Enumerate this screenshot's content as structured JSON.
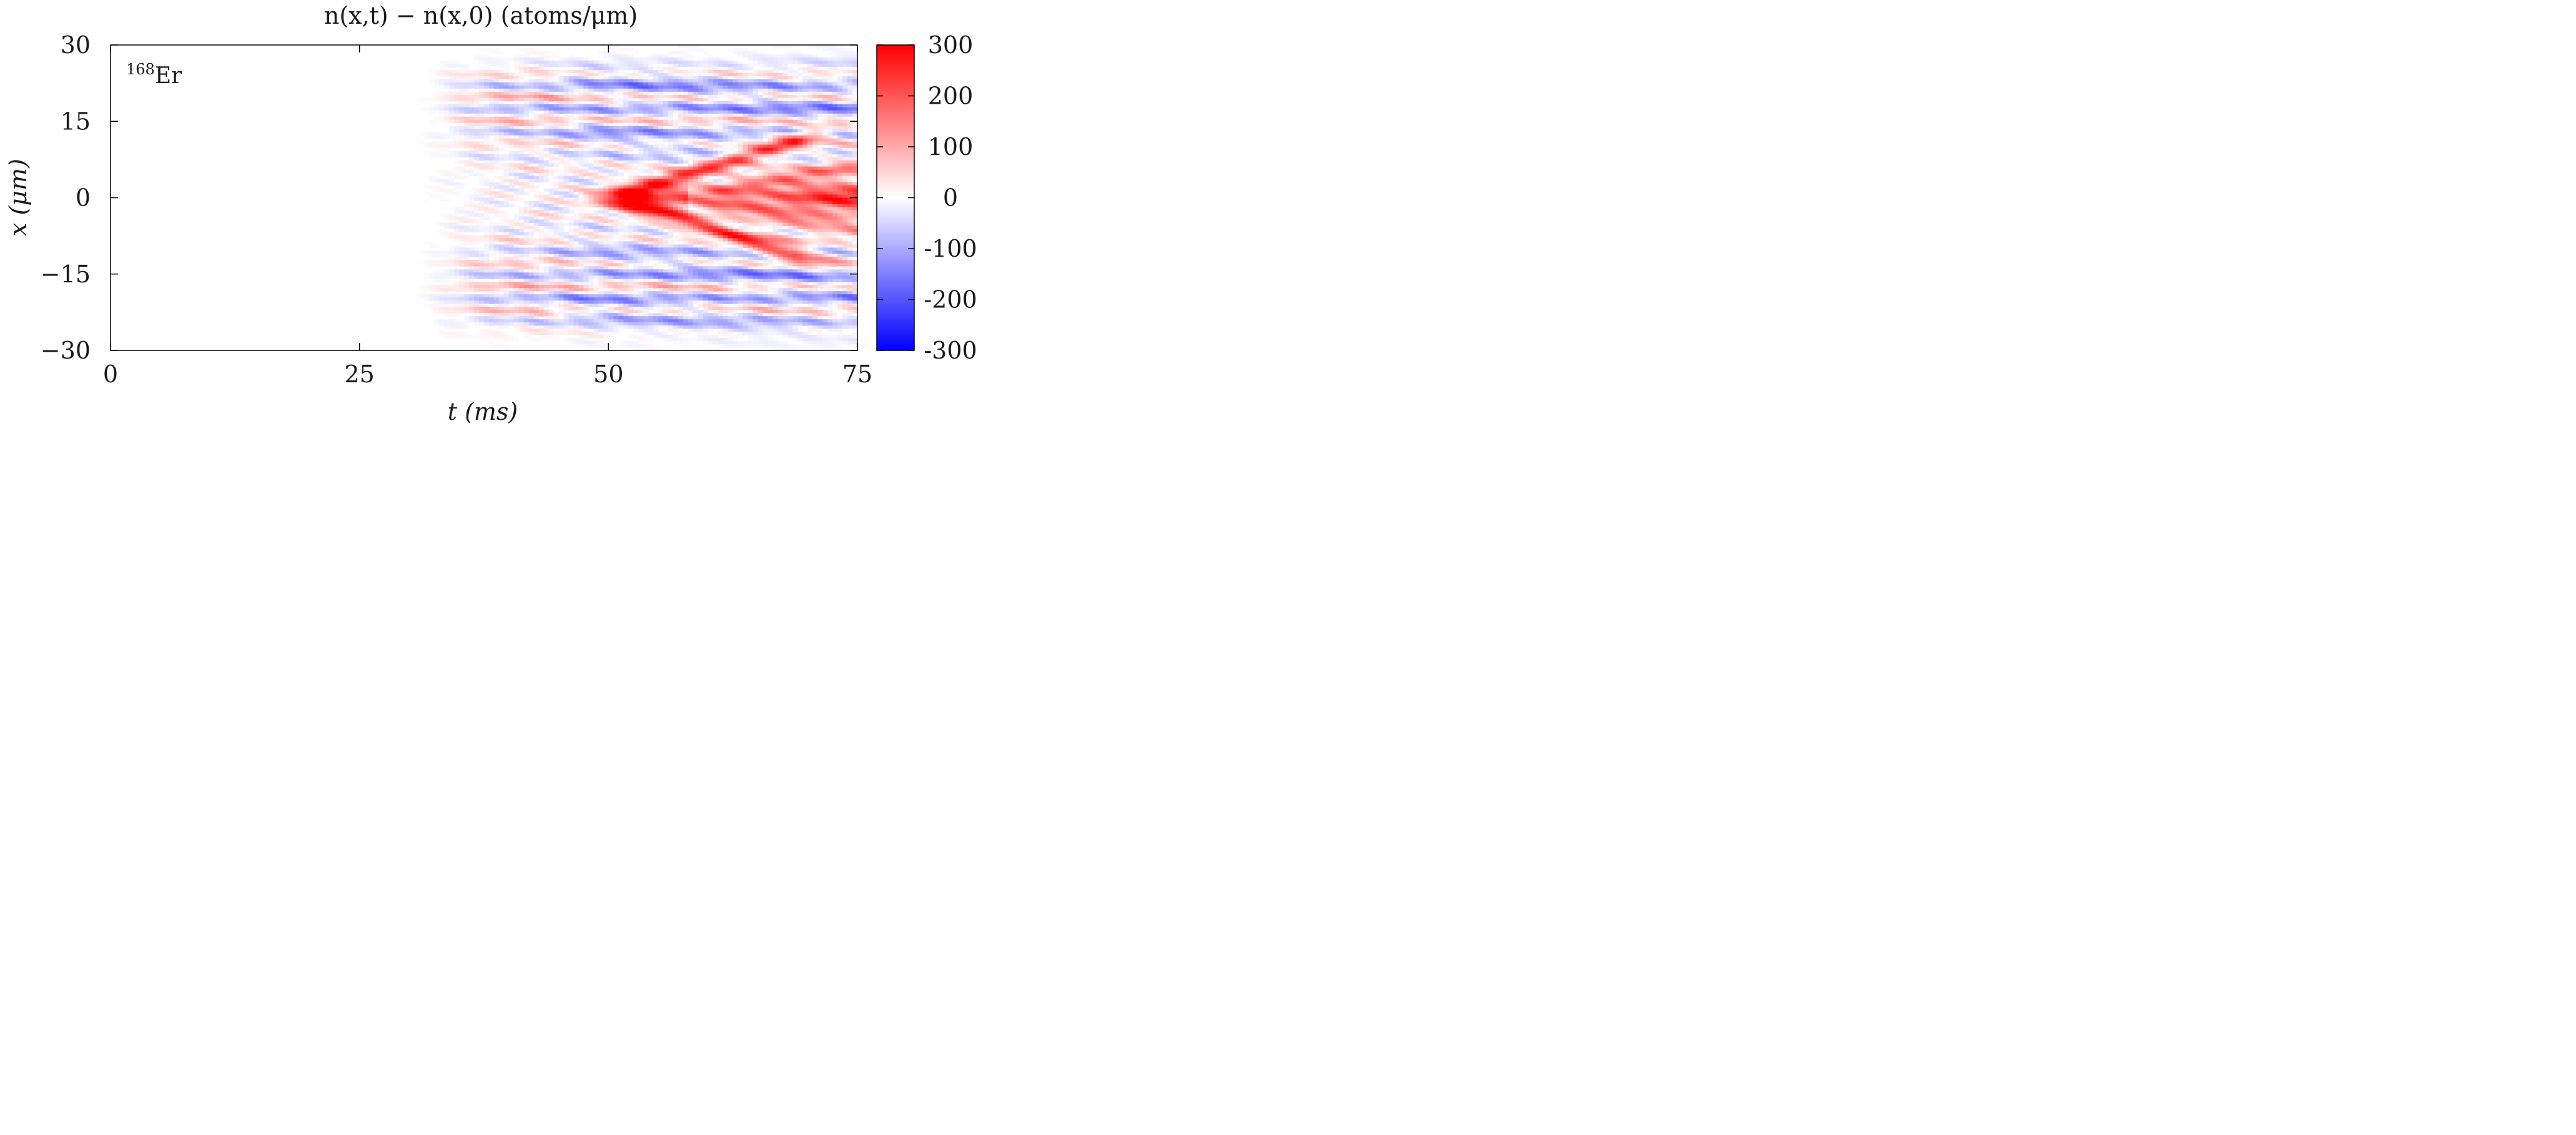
{
  "chart_data": {
    "type": "heatmap",
    "title": "n(x,t) − n(x,0)   (atoms/μm)",
    "xlabel": "t (ms)",
    "ylabel": "x (μm)",
    "xlim": [
      0,
      75
    ],
    "ylim": [
      -30,
      30
    ],
    "x_ticks": [
      "0",
      "25",
      "50",
      "75"
    ],
    "y_ticks": [
      "30",
      "15",
      "0",
      "−15",
      "−30"
    ],
    "colorbar": {
      "range": [
        -300,
        300
      ],
      "ticks": [
        "300",
        "200",
        "100",
        "0",
        "-100",
        "-200",
        "-300"
      ],
      "colors": {
        "negative": "#0000ff",
        "zero": "#ffffff",
        "positive": "#ff0000"
      }
    },
    "annotation": {
      "sup": "168",
      "text": "Er"
    },
    "features": {
      "perturbation_onset_t": 34,
      "dense_pattern_onset_t": 42,
      "central_peak_x": 0,
      "side_branches_slope_um_per_ms": 0.6
    }
  }
}
